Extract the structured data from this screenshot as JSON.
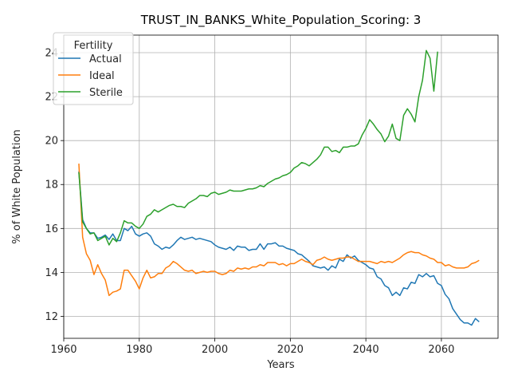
{
  "chart_data": {
    "type": "line",
    "title": "TRUST_IN_BANKS_White_Population_Scoring: 3",
    "xlabel": "Years",
    "ylabel": "% of White Population",
    "xlim": [
      1960,
      2075
    ],
    "ylim": [
      11.0,
      24.8
    ],
    "xticks": [
      1960,
      1980,
      2000,
      2020,
      2040,
      2060
    ],
    "yticks": [
      12,
      14,
      16,
      18,
      20,
      22,
      24
    ],
    "grid": true,
    "legend": {
      "title": "Fertility",
      "position": "top-left"
    },
    "series": [
      {
        "name": "Actual",
        "color": "#1f77b4",
        "points": [
          [
            1964,
            18.6
          ],
          [
            1965,
            16.4
          ],
          [
            1966,
            16.0
          ],
          [
            1967,
            15.8
          ],
          [
            1968,
            15.8
          ],
          [
            1969,
            15.55
          ],
          [
            1970,
            15.6
          ],
          [
            1971,
            15.7
          ],
          [
            1972,
            15.5
          ],
          [
            1973,
            15.75
          ],
          [
            1974,
            15.45
          ],
          [
            1975,
            15.45
          ],
          [
            1976,
            16.0
          ],
          [
            1977,
            15.9
          ],
          [
            1978,
            16.1
          ],
          [
            1979,
            15.75
          ],
          [
            1980,
            15.65
          ],
          [
            1981,
            15.75
          ],
          [
            1982,
            15.8
          ],
          [
            1983,
            15.65
          ],
          [
            1984,
            15.3
          ],
          [
            1985,
            15.2
          ],
          [
            1986,
            15.05
          ],
          [
            1987,
            15.15
          ],
          [
            1988,
            15.1
          ],
          [
            1989,
            15.25
          ],
          [
            1990,
            15.45
          ],
          [
            1991,
            15.6
          ],
          [
            1992,
            15.5
          ],
          [
            1993,
            15.55
          ],
          [
            1994,
            15.6
          ],
          [
            1995,
            15.5
          ],
          [
            1996,
            15.55
          ],
          [
            1997,
            15.5
          ],
          [
            1998,
            15.45
          ],
          [
            1999,
            15.4
          ],
          [
            2000,
            15.25
          ],
          [
            2001,
            15.15
          ],
          [
            2002,
            15.1
          ],
          [
            2003,
            15.05
          ],
          [
            2004,
            15.15
          ],
          [
            2005,
            15.0
          ],
          [
            2006,
            15.2
          ],
          [
            2007,
            15.15
          ],
          [
            2008,
            15.15
          ],
          [
            2009,
            15.0
          ],
          [
            2010,
            15.05
          ],
          [
            2011,
            15.05
          ],
          [
            2012,
            15.3
          ],
          [
            2013,
            15.05
          ],
          [
            2014,
            15.3
          ],
          [
            2015,
            15.3
          ],
          [
            2016,
            15.35
          ],
          [
            2017,
            15.2
          ],
          [
            2018,
            15.2
          ],
          [
            2019,
            15.1
          ],
          [
            2020,
            15.05
          ],
          [
            2021,
            15.0
          ],
          [
            2022,
            14.85
          ],
          [
            2023,
            14.8
          ],
          [
            2024,
            14.65
          ],
          [
            2025,
            14.5
          ],
          [
            2026,
            14.3
          ],
          [
            2027,
            14.25
          ],
          [
            2028,
            14.2
          ],
          [
            2029,
            14.25
          ],
          [
            2030,
            14.1
          ],
          [
            2031,
            14.3
          ],
          [
            2032,
            14.2
          ],
          [
            2033,
            14.6
          ],
          [
            2034,
            14.5
          ],
          [
            2035,
            14.8
          ],
          [
            2036,
            14.65
          ],
          [
            2037,
            14.75
          ],
          [
            2038,
            14.55
          ],
          [
            2039,
            14.45
          ],
          [
            2040,
            14.35
          ],
          [
            2041,
            14.2
          ],
          [
            2042,
            14.15
          ],
          [
            2043,
            13.8
          ],
          [
            2044,
            13.7
          ],
          [
            2045,
            13.4
          ],
          [
            2046,
            13.3
          ],
          [
            2047,
            12.95
          ],
          [
            2048,
            13.1
          ],
          [
            2049,
            12.95
          ],
          [
            2050,
            13.3
          ],
          [
            2051,
            13.25
          ],
          [
            2052,
            13.55
          ],
          [
            2053,
            13.5
          ],
          [
            2054,
            13.9
          ],
          [
            2055,
            13.8
          ],
          [
            2056,
            13.95
          ],
          [
            2057,
            13.8
          ],
          [
            2058,
            13.85
          ],
          [
            2059,
            13.5
          ],
          [
            2060,
            13.4
          ],
          [
            2061,
            13.0
          ],
          [
            2062,
            12.8
          ],
          [
            2063,
            12.35
          ],
          [
            2064,
            12.1
          ],
          [
            2065,
            11.85
          ],
          [
            2066,
            11.7
          ],
          [
            2067,
            11.7
          ],
          [
            2068,
            11.6
          ],
          [
            2069,
            11.9
          ],
          [
            2070,
            11.75
          ]
        ]
      },
      {
        "name": "Ideal",
        "color": "#ff7f0e",
        "points": [
          [
            1964,
            18.95
          ],
          [
            1965,
            15.6
          ],
          [
            1966,
            14.85
          ],
          [
            1967,
            14.55
          ],
          [
            1968,
            13.9
          ],
          [
            1969,
            14.35
          ],
          [
            1970,
            13.95
          ],
          [
            1971,
            13.65
          ],
          [
            1972,
            12.95
          ],
          [
            1973,
            13.1
          ],
          [
            1974,
            13.15
          ],
          [
            1975,
            13.25
          ],
          [
            1976,
            14.1
          ],
          [
            1977,
            14.1
          ],
          [
            1978,
            13.85
          ],
          [
            1979,
            13.6
          ],
          [
            1980,
            13.25
          ],
          [
            1981,
            13.75
          ],
          [
            1982,
            14.1
          ],
          [
            1983,
            13.75
          ],
          [
            1984,
            13.8
          ],
          [
            1985,
            13.95
          ],
          [
            1986,
            13.95
          ],
          [
            1987,
            14.2
          ],
          [
            1988,
            14.3
          ],
          [
            1989,
            14.5
          ],
          [
            1990,
            14.4
          ],
          [
            1991,
            14.25
          ],
          [
            1992,
            14.1
          ],
          [
            1993,
            14.05
          ],
          [
            1994,
            14.1
          ],
          [
            1995,
            13.95
          ],
          [
            1996,
            14.0
          ],
          [
            1997,
            14.05
          ],
          [
            1998,
            14.0
          ],
          [
            1999,
            14.05
          ],
          [
            2000,
            14.05
          ],
          [
            2001,
            13.95
          ],
          [
            2002,
            13.9
          ],
          [
            2003,
            13.95
          ],
          [
            2004,
            14.1
          ],
          [
            2005,
            14.05
          ],
          [
            2006,
            14.2
          ],
          [
            2007,
            14.15
          ],
          [
            2008,
            14.2
          ],
          [
            2009,
            14.15
          ],
          [
            2010,
            14.25
          ],
          [
            2011,
            14.25
          ],
          [
            2012,
            14.35
          ],
          [
            2013,
            14.3
          ],
          [
            2014,
            14.45
          ],
          [
            2015,
            14.45
          ],
          [
            2016,
            14.45
          ],
          [
            2017,
            14.35
          ],
          [
            2018,
            14.4
          ],
          [
            2019,
            14.3
          ],
          [
            2020,
            14.4
          ],
          [
            2021,
            14.4
          ],
          [
            2022,
            14.5
          ],
          [
            2023,
            14.6
          ],
          [
            2024,
            14.5
          ],
          [
            2025,
            14.45
          ],
          [
            2026,
            14.35
          ],
          [
            2027,
            14.55
          ],
          [
            2028,
            14.6
          ],
          [
            2029,
            14.7
          ],
          [
            2030,
            14.6
          ],
          [
            2031,
            14.55
          ],
          [
            2032,
            14.6
          ],
          [
            2033,
            14.65
          ],
          [
            2034,
            14.65
          ],
          [
            2035,
            14.7
          ],
          [
            2036,
            14.7
          ],
          [
            2037,
            14.6
          ],
          [
            2038,
            14.5
          ],
          [
            2039,
            14.5
          ],
          [
            2040,
            14.5
          ],
          [
            2041,
            14.5
          ],
          [
            2042,
            14.45
          ],
          [
            2043,
            14.4
          ],
          [
            2044,
            14.5
          ],
          [
            2045,
            14.45
          ],
          [
            2046,
            14.5
          ],
          [
            2047,
            14.45
          ],
          [
            2048,
            14.55
          ],
          [
            2049,
            14.65
          ],
          [
            2050,
            14.8
          ],
          [
            2051,
            14.9
          ],
          [
            2052,
            14.95
          ],
          [
            2053,
            14.9
          ],
          [
            2054,
            14.9
          ],
          [
            2055,
            14.8
          ],
          [
            2056,
            14.75
          ],
          [
            2057,
            14.65
          ],
          [
            2058,
            14.6
          ],
          [
            2059,
            14.45
          ],
          [
            2060,
            14.45
          ],
          [
            2061,
            14.3
          ],
          [
            2062,
            14.35
          ],
          [
            2063,
            14.25
          ],
          [
            2064,
            14.2
          ],
          [
            2065,
            14.2
          ],
          [
            2066,
            14.2
          ],
          [
            2067,
            14.25
          ],
          [
            2068,
            14.4
          ],
          [
            2069,
            14.45
          ],
          [
            2070,
            14.55
          ]
        ]
      },
      {
        "name": "Sterile",
        "color": "#2ca02c",
        "points": [
          [
            1964,
            18.55
          ],
          [
            1965,
            16.3
          ],
          [
            1966,
            16.0
          ],
          [
            1967,
            15.75
          ],
          [
            1968,
            15.8
          ],
          [
            1969,
            15.45
          ],
          [
            1970,
            15.55
          ],
          [
            1971,
            15.65
          ],
          [
            1972,
            15.25
          ],
          [
            1973,
            15.55
          ],
          [
            1974,
            15.4
          ],
          [
            1975,
            15.8
          ],
          [
            1976,
            16.35
          ],
          [
            1977,
            16.25
          ],
          [
            1978,
            16.25
          ],
          [
            1979,
            16.1
          ],
          [
            1980,
            16.0
          ],
          [
            1981,
            16.2
          ],
          [
            1982,
            16.55
          ],
          [
            1983,
            16.65
          ],
          [
            1984,
            16.85
          ],
          [
            1985,
            16.75
          ],
          [
            1986,
            16.85
          ],
          [
            1987,
            16.95
          ],
          [
            1988,
            17.05
          ],
          [
            1989,
            17.1
          ],
          [
            1990,
            17.0
          ],
          [
            1991,
            17.0
          ],
          [
            1992,
            16.95
          ],
          [
            1993,
            17.15
          ],
          [
            1994,
            17.25
          ],
          [
            1995,
            17.35
          ],
          [
            1996,
            17.5
          ],
          [
            1997,
            17.5
          ],
          [
            1998,
            17.45
          ],
          [
            1999,
            17.6
          ],
          [
            2000,
            17.65
          ],
          [
            2001,
            17.55
          ],
          [
            2002,
            17.6
          ],
          [
            2003,
            17.65
          ],
          [
            2004,
            17.75
          ],
          [
            2005,
            17.7
          ],
          [
            2006,
            17.7
          ],
          [
            2007,
            17.7
          ],
          [
            2008,
            17.75
          ],
          [
            2009,
            17.8
          ],
          [
            2010,
            17.8
          ],
          [
            2011,
            17.85
          ],
          [
            2012,
            17.95
          ],
          [
            2013,
            17.9
          ],
          [
            2014,
            18.05
          ],
          [
            2015,
            18.15
          ],
          [
            2016,
            18.25
          ],
          [
            2017,
            18.3
          ],
          [
            2018,
            18.4
          ],
          [
            2019,
            18.45
          ],
          [
            2020,
            18.55
          ],
          [
            2021,
            18.75
          ],
          [
            2022,
            18.85
          ],
          [
            2023,
            19.0
          ],
          [
            2024,
            18.95
          ],
          [
            2025,
            18.85
          ],
          [
            2026,
            19.0
          ],
          [
            2027,
            19.15
          ],
          [
            2028,
            19.35
          ],
          [
            2029,
            19.7
          ],
          [
            2030,
            19.7
          ],
          [
            2031,
            19.5
          ],
          [
            2032,
            19.55
          ],
          [
            2033,
            19.45
          ],
          [
            2034,
            19.7
          ],
          [
            2035,
            19.7
          ],
          [
            2036,
            19.75
          ],
          [
            2037,
            19.75
          ],
          [
            2038,
            19.85
          ],
          [
            2039,
            20.25
          ],
          [
            2040,
            20.55
          ],
          [
            2041,
            20.95
          ],
          [
            2042,
            20.75
          ],
          [
            2043,
            20.5
          ],
          [
            2044,
            20.3
          ],
          [
            2045,
            19.95
          ],
          [
            2046,
            20.2
          ],
          [
            2047,
            20.75
          ],
          [
            2048,
            20.1
          ],
          [
            2049,
            20.0
          ],
          [
            2050,
            21.15
          ],
          [
            2051,
            21.45
          ],
          [
            2052,
            21.2
          ],
          [
            2053,
            20.85
          ],
          [
            2054,
            22.0
          ],
          [
            2055,
            22.75
          ],
          [
            2056,
            24.1
          ],
          [
            2057,
            23.75
          ],
          [
            2058,
            22.25
          ],
          [
            2059,
            24.05
          ]
        ]
      }
    ]
  }
}
